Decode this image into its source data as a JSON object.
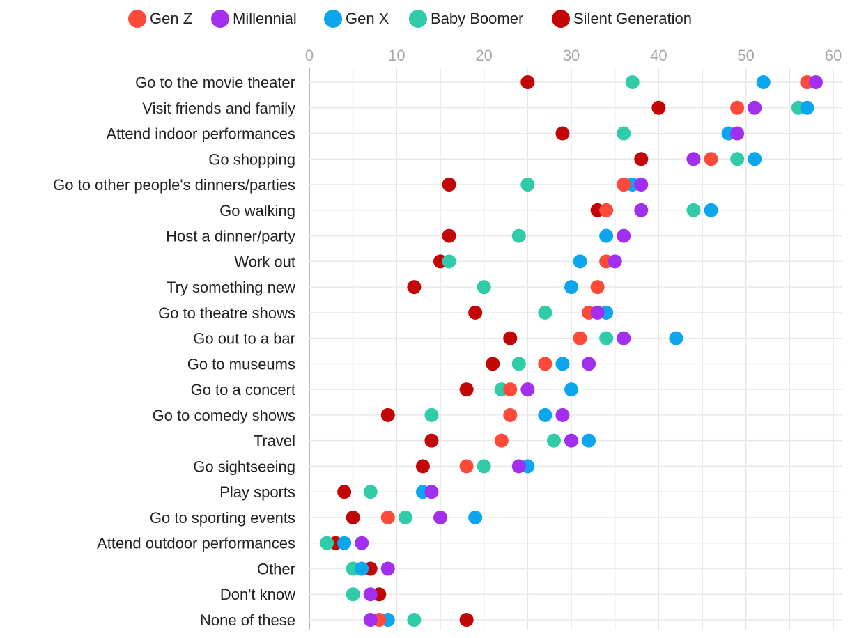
{
  "chart_data": {
    "type": "scatter",
    "subtype": "dot-plot",
    "title": "",
    "xlabel": "",
    "ylabel": "",
    "xlim": [
      0,
      60
    ],
    "xticks": [
      0,
      10,
      20,
      30,
      40,
      50,
      60
    ],
    "grid": true,
    "legend_position": "top",
    "categories": [
      "Go to the movie theater",
      "Visit friends and family",
      "Attend indoor performances",
      "Go shopping",
      "Go to other people's dinners/parties",
      "Go walking",
      "Host a dinner/party",
      "Work out",
      "Try something new",
      "Go to theatre shows",
      "Go out to a bar",
      "Go to museums",
      "Go to a concert",
      "Go to comedy shows",
      "Travel",
      "Go sightseeing",
      "Play sports",
      "Go to sporting events",
      "Attend outdoor performances",
      "Other",
      "Don't know",
      "None of these"
    ],
    "series": [
      {
        "name": "Gen Z",
        "color": "#ff4a3a",
        "values": [
          57,
          49,
          null,
          46,
          36,
          34,
          null,
          34,
          33,
          32,
          31,
          27,
          23,
          23,
          22,
          18,
          null,
          9,
          null,
          null,
          null,
          8
        ]
      },
      {
        "name": "Millennial",
        "color": "#a22ff0",
        "values": [
          58,
          51,
          49,
          44,
          38,
          38,
          36,
          35,
          null,
          33,
          36,
          32,
          25,
          29,
          30,
          24,
          14,
          15,
          6,
          9,
          7,
          7
        ]
      },
      {
        "name": "Gen X",
        "color": "#0ba6ee",
        "values": [
          52,
          57,
          48,
          51,
          37,
          46,
          34,
          31,
          30,
          34,
          42,
          29,
          30,
          27,
          32,
          25,
          13,
          19,
          4,
          6,
          null,
          9
        ]
      },
      {
        "name": "Baby Boomer",
        "color": "#30cba7",
        "values": [
          37,
          56,
          36,
          49,
          25,
          44,
          24,
          16,
          20,
          27,
          34,
          24,
          22,
          14,
          28,
          20,
          7,
          11,
          2,
          5,
          5,
          12
        ]
      },
      {
        "name": "Silent Generation",
        "color": "#c20606",
        "values": [
          25,
          40,
          29,
          38,
          16,
          33,
          16,
          15,
          12,
          19,
          23,
          21,
          18,
          9,
          14,
          13,
          4,
          5,
          3,
          7,
          8,
          18
        ]
      }
    ]
  }
}
